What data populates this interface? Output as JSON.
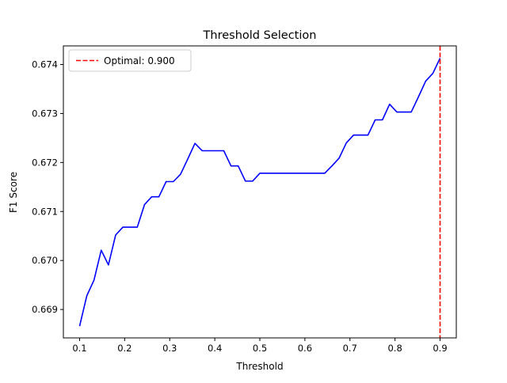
{
  "chart_data": {
    "type": "line",
    "title": "Threshold Selection",
    "xlabel": "Threshold",
    "ylabel": "F1 Score",
    "xlim": [
      0.064,
      0.936
    ],
    "ylim": [
      0.66842,
      0.67438
    ],
    "xticks": [
      0.1,
      0.2,
      0.3,
      0.4,
      0.5,
      0.6,
      0.7,
      0.8,
      0.9
    ],
    "xtick_labels": [
      "0.1",
      "0.2",
      "0.3",
      "0.4",
      "0.5",
      "0.6",
      "0.7",
      "0.8",
      "0.9"
    ],
    "yticks": [
      0.669,
      0.67,
      0.671,
      0.672,
      0.673,
      0.674
    ],
    "ytick_labels": [
      "0.669",
      "0.670",
      "0.671",
      "0.672",
      "0.673",
      "0.674"
    ],
    "grid": false,
    "legend_position": "top-left",
    "series": [
      {
        "name": "",
        "color": "#0000ff",
        "x": [
          0.1,
          0.116,
          0.132,
          0.148,
          0.164,
          0.18,
          0.196,
          0.212,
          0.228,
          0.244,
          0.26,
          0.276,
          0.292,
          0.308,
          0.324,
          0.34,
          0.356,
          0.372,
          0.388,
          0.404,
          0.42,
          0.436,
          0.452,
          0.468,
          0.484,
          0.5,
          0.516,
          0.532,
          0.548,
          0.564,
          0.58,
          0.596,
          0.612,
          0.628,
          0.644,
          0.66,
          0.676,
          0.692,
          0.708,
          0.724,
          0.74,
          0.756,
          0.772,
          0.788,
          0.804,
          0.82,
          0.836,
          0.852,
          0.868,
          0.884,
          0.9
        ],
        "values": [
          0.66866,
          0.66928,
          0.6696,
          0.67021,
          0.66991,
          0.67052,
          0.67068,
          0.67068,
          0.67068,
          0.67114,
          0.6713,
          0.6713,
          0.67161,
          0.67161,
          0.67176,
          0.67207,
          0.67239,
          0.67224,
          0.67224,
          0.67224,
          0.67224,
          0.67193,
          0.67193,
          0.67162,
          0.67162,
          0.67178,
          0.67178,
          0.67178,
          0.67178,
          0.67178,
          0.67178,
          0.67178,
          0.67178,
          0.67178,
          0.67178,
          0.67193,
          0.67209,
          0.6724,
          0.67256,
          0.67256,
          0.67256,
          0.67287,
          0.67287,
          0.67319,
          0.67303,
          0.67303,
          0.67303,
          0.67334,
          0.67366,
          0.67382,
          0.67413
        ]
      }
    ],
    "reference_lines": [
      {
        "orientation": "vertical",
        "x": 0.9,
        "color": "#ff0000",
        "style": "dashed",
        "label": "Optimal: 0.900"
      }
    ]
  }
}
